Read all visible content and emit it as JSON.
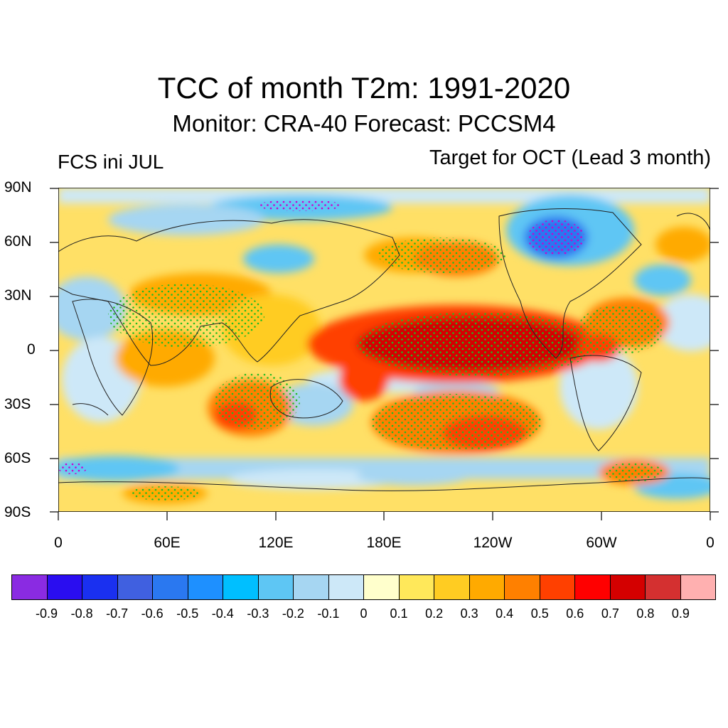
{
  "title": "TCC of month T2m: 1991-2020",
  "subtitle": "Monitor: CRA-40   Forecast: PCCSM4",
  "left_label": "FCS ini JUL",
  "right_label": "Target for OCT (Lead 3 month)",
  "lat_labels": [
    "90N",
    "60N",
    "30N",
    "0",
    "30S",
    "60S",
    "90S"
  ],
  "lon_labels": [
    "0",
    "60E",
    "120E",
    "180E",
    "120W",
    "60W",
    "0"
  ],
  "colorbar": {
    "colors": [
      "#8a2be2",
      "#2a0df0",
      "#1a30f0",
      "#4060e0",
      "#2a78f0",
      "#1e90ff",
      "#00bfff",
      "#5ec6f4",
      "#a6d6f2",
      "#cde8f8",
      "#ffffcc",
      "#ffe85a",
      "#ffcc22",
      "#ffaa00",
      "#ff8000",
      "#ff4000",
      "#ff0000",
      "#d40000",
      "#d43030",
      "#ffb0b0"
    ],
    "labels": [
      "-0.9",
      "-0.8",
      "-0.7",
      "-0.6",
      "-0.5",
      "-0.4",
      "-0.3",
      "-0.2",
      "-0.1",
      "0",
      "0.1",
      "0.2",
      "0.3",
      "0.4",
      "0.5",
      "0.6",
      "0.7",
      "0.8",
      "0.9"
    ]
  },
  "stipple_colors": {
    "positive": "#22bb22",
    "negative": "#cc00cc"
  },
  "land_outline_color": "#222222"
}
